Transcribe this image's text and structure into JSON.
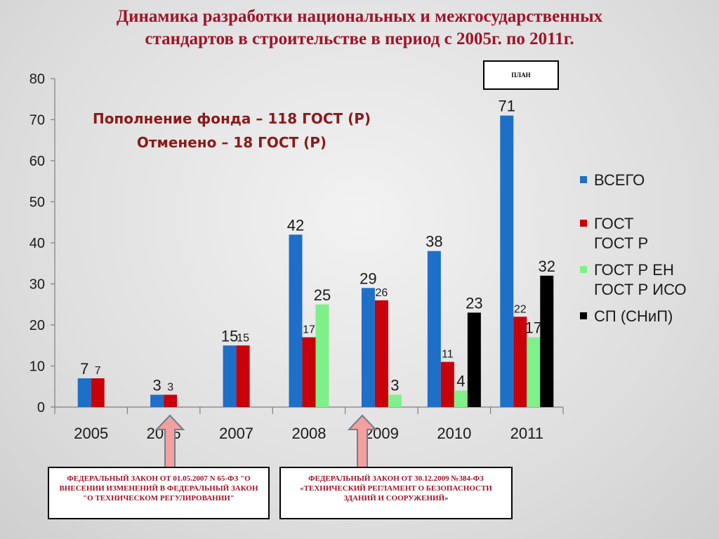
{
  "title": {
    "line1": "Динамика разработки национальных и межгосударственных",
    "line2": "стандартов в строительстве в период с 2005г. по 2011г."
  },
  "plan_label": "ПЛАН",
  "notes": {
    "line1": "Пополнение фонда – 118 ГОСТ (Р)",
    "line2": "Отменено – 18 ГОСТ (Р)"
  },
  "laws": {
    "left": "ФЕДЕРАЛЬНЫЙ ЗАКОН ОТ 01.05.2007 N 65-ФЗ \"О ВНЕСЕНИИ ИЗМЕНЕНИЙ В ФЕДЕРАЛЬНЫЙ ЗАКОН \"О ТЕХНИЧЕСКОМ РЕГУЛИРОВАНИИ\"",
    "right": "ФЕДЕРАЛЬНЫЙ ЗАКОН ОТ 30.12.2009 №384-ФЗ «ТЕХНИЧЕСКИЙ РЕГЛАМЕНТ О БЕЗОПАСНОСТИ ЗДАНИЙ И СООРУЖЕНИЙ»"
  },
  "colors": {
    "title": "#a01428",
    "blue": "#1e6fc8",
    "red": "#c8000a",
    "green": "#80f08a",
    "black": "#000000",
    "arrow": "#f4a0a0"
  },
  "chart_data": {
    "type": "bar",
    "categories": [
      "2005",
      "2006",
      "2007",
      "2008",
      "2009",
      "2010",
      "2011"
    ],
    "ylim": [
      0,
      80
    ],
    "yticks": [
      0,
      10,
      20,
      30,
      40,
      50,
      60,
      70,
      80
    ],
    "legend_position": "right",
    "series": [
      {
        "name": "ВСЕГО",
        "color": "#1e6fc8",
        "values": [
          7,
          3,
          15,
          42,
          29,
          38,
          71
        ]
      },
      {
        "name": "ГОСТ\nГОСТ Р",
        "color": "#c8000a",
        "values": [
          7,
          3,
          15,
          17,
          26,
          11,
          22
        ]
      },
      {
        "name": "ГОСТ Р ЕН\nГОСТ Р ИСО",
        "color": "#80f08a",
        "values": [
          null,
          null,
          null,
          25,
          3,
          4,
          17
        ]
      },
      {
        "name": "СП (СНиП)",
        "color": "#000000",
        "values": [
          null,
          null,
          null,
          null,
          null,
          23,
          32
        ]
      }
    ]
  }
}
